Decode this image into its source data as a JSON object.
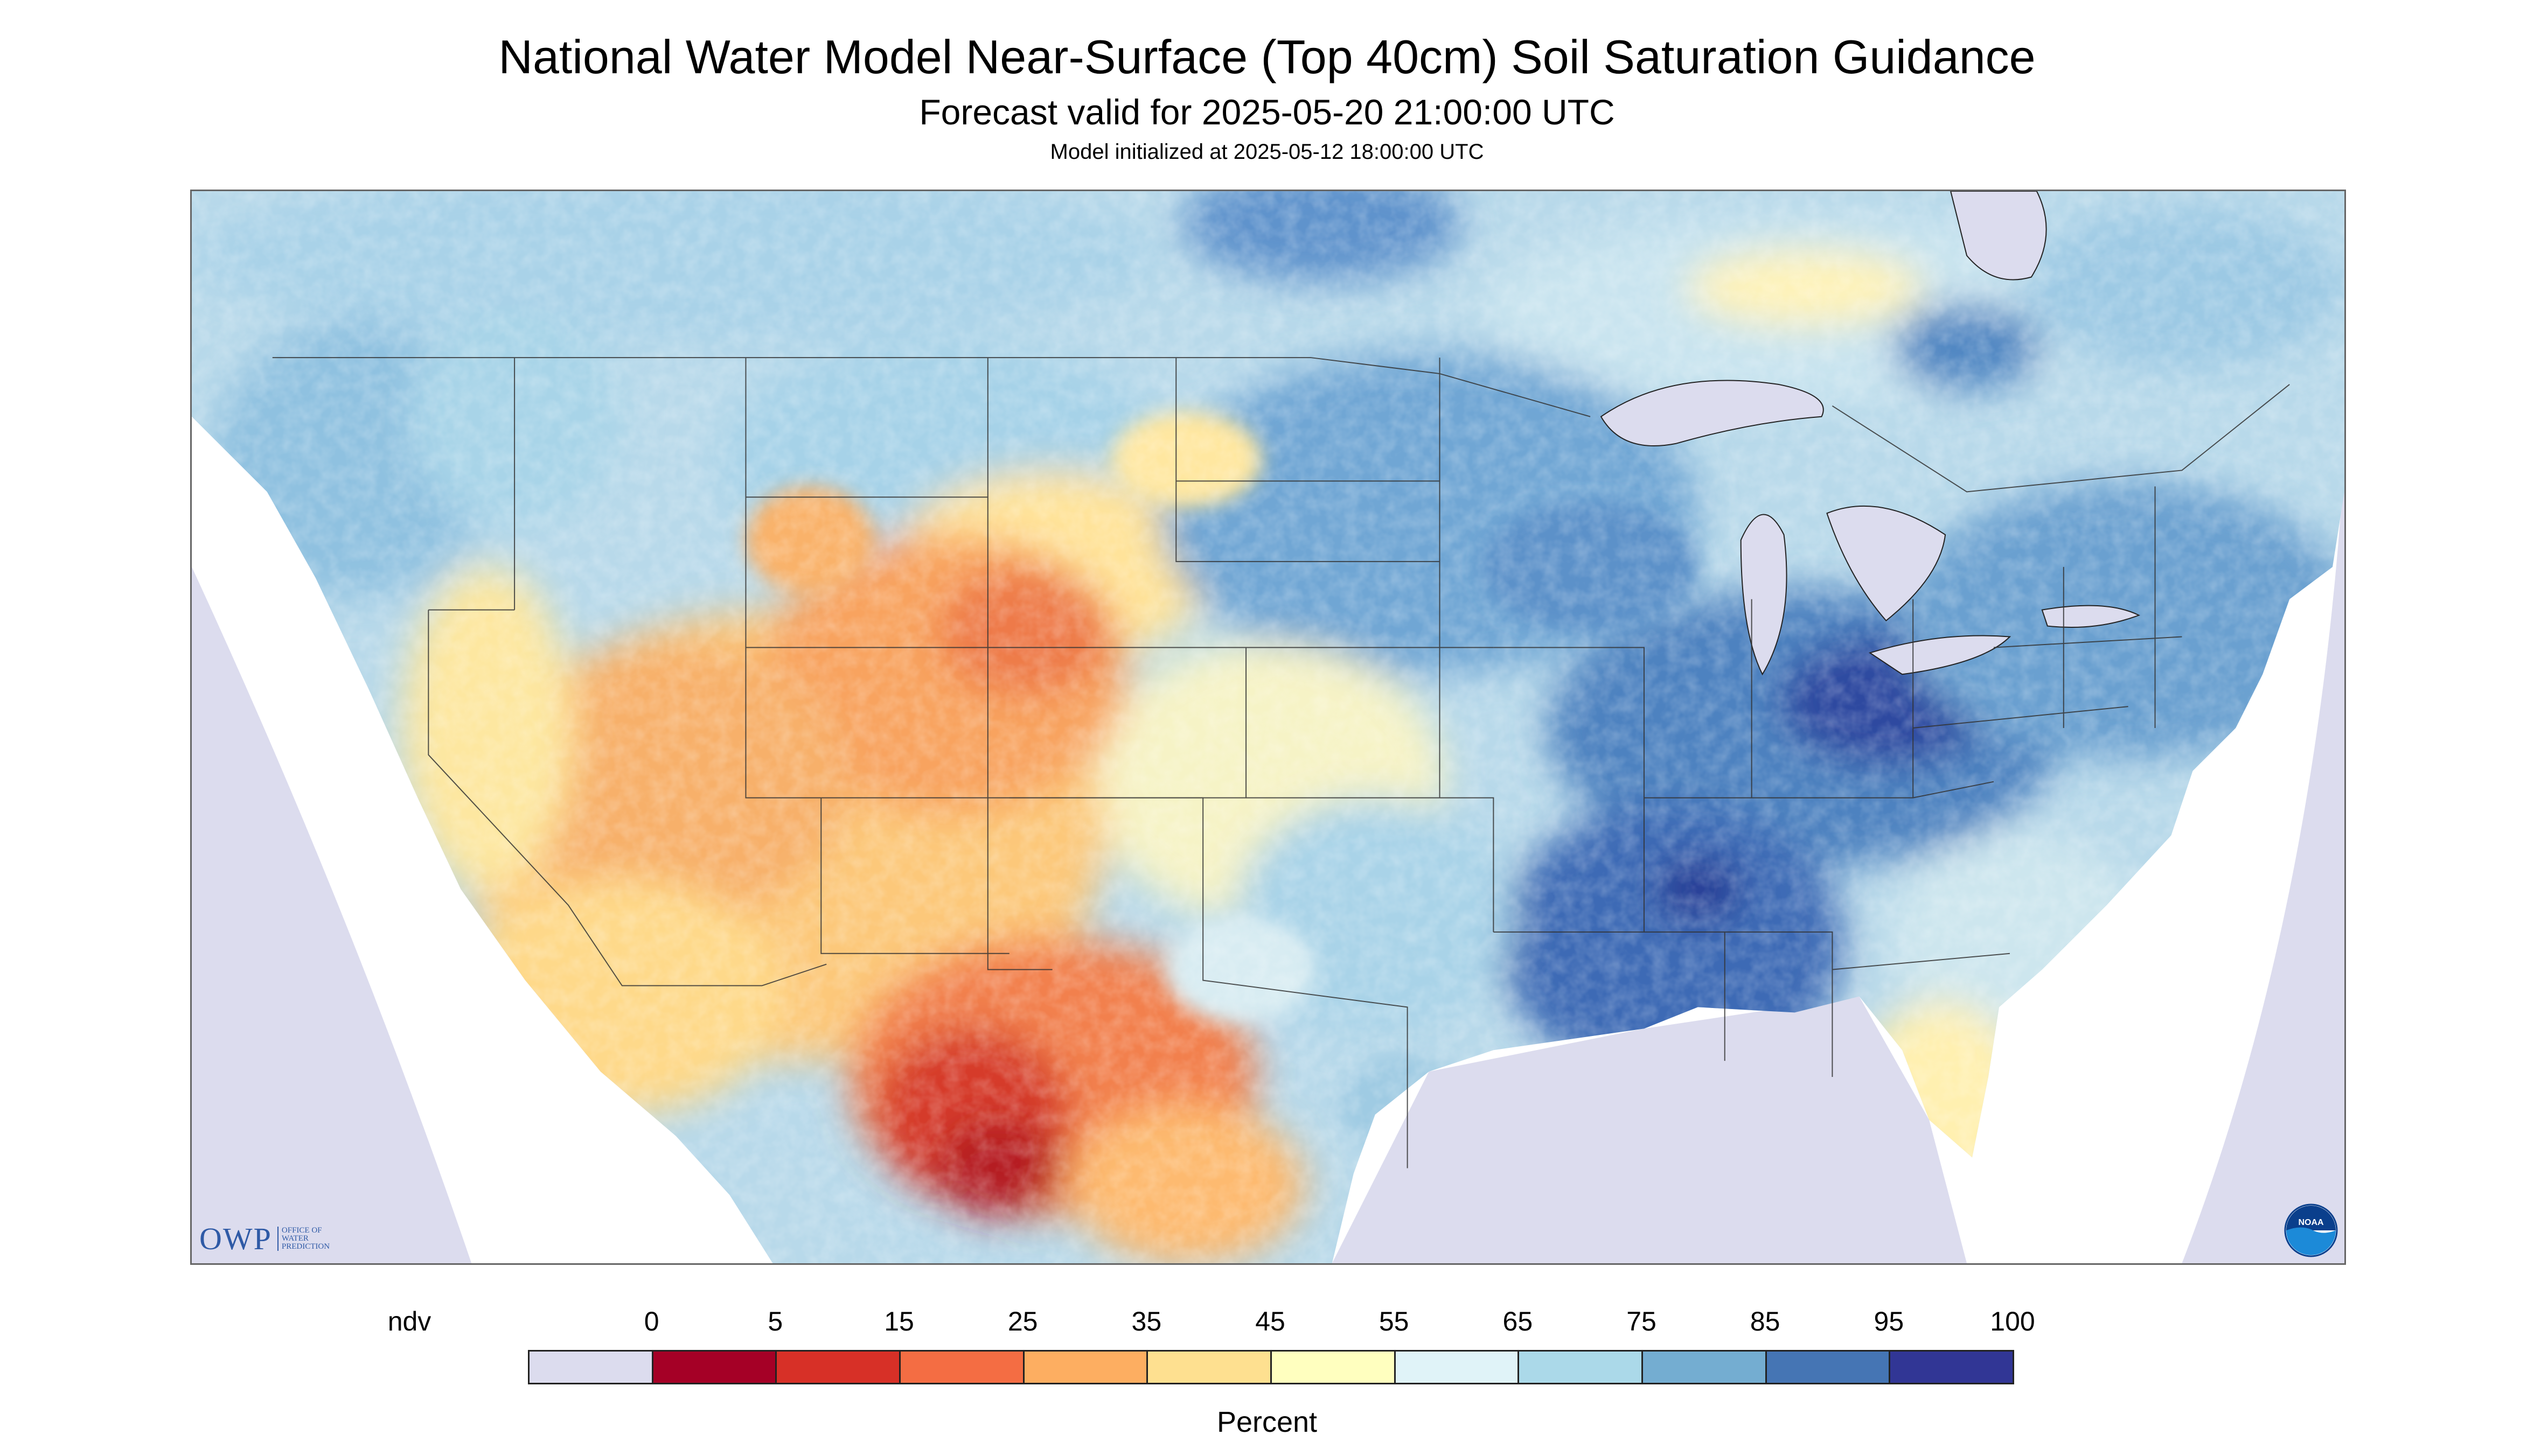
{
  "header": {
    "title": "National Water Model Near-Surface (Top 40cm) Soil Saturation Guidance",
    "subtitle": "Forecast valid for 2025-05-20 21:00:00 UTC",
    "initialized": "Model initialized at 2025-05-12 18:00:00 UTC"
  },
  "map": {
    "region": "Contiguous United States",
    "variable": "Near-surface soil saturation",
    "water_color": "#dcdcee",
    "land_background_color": "#b8d9ea",
    "border_color": "#333333",
    "regions_of_interest": [
      {
        "area": "Southwest / West Texas / northern Mexico",
        "level": "very dry",
        "approx_percent": 10
      },
      {
        "area": "Four Corners / Colorado / Utah",
        "level": "dry",
        "approx_percent": 25
      },
      {
        "area": "Great Plains west (Nebraska, Kansas, Dakotas)",
        "level": "moderate",
        "approx_percent": 50
      },
      {
        "area": "Midwest / Ohio Valley",
        "level": "wet",
        "approx_percent": 80
      },
      {
        "area": "Lower Mississippi Valley",
        "level": "very wet",
        "approx_percent": 90
      },
      {
        "area": "Northeast",
        "level": "wet",
        "approx_percent": 75
      },
      {
        "area": "Florida",
        "level": "dry to moderate",
        "approx_percent": 45
      },
      {
        "area": "Pacific Northwest",
        "level": "moist",
        "approx_percent": 70
      }
    ]
  },
  "logos": {
    "owp_mark": "OWP",
    "owp_text": "OFFICE OF WATER PREDICTION",
    "noaa_text": "NOAA"
  },
  "legend": {
    "title": "Percent",
    "labels": [
      "ndv",
      "0",
      "5",
      "15",
      "25",
      "35",
      "45",
      "55",
      "65",
      "75",
      "85",
      "95",
      "100"
    ],
    "colors": [
      "#dcdcee",
      "#a50026",
      "#d73027",
      "#f46d43",
      "#fdae61",
      "#fee090",
      "#ffffbf",
      "#e0f3f8",
      "#abd9e9",
      "#74add1",
      "#4575b4",
      "#313695"
    ]
  }
}
